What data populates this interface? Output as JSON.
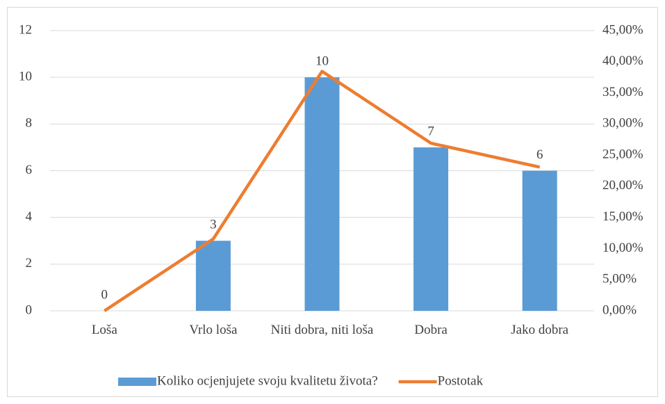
{
  "chart_data": {
    "type": "bar_line",
    "categories": [
      "Loša",
      "Vrlo loša",
      "Niti dobra, niti loša",
      "Dobra",
      "Jako dobra"
    ],
    "series": [
      {
        "name": "Koliko ocjenjujete svoju kvalitetu života?",
        "type": "bar",
        "color": "#5b9bd5",
        "values": [
          0,
          3,
          10,
          7,
          6
        ]
      },
      {
        "name": "Postotak",
        "type": "line",
        "color": "#ed7d31",
        "axis": "y2",
        "values": [
          0,
          11.54,
          38.46,
          26.92,
          23.08
        ]
      }
    ],
    "ylim": [
      0,
      12
    ],
    "yticks": [
      0,
      2,
      4,
      6,
      8,
      10,
      12
    ],
    "y2lim": [
      0,
      45
    ],
    "y2ticks": [
      {
        "value": 0,
        "label": "0,00%"
      },
      {
        "value": 5,
        "label": "5,00%"
      },
      {
        "value": 10,
        "label": "10,00%"
      },
      {
        "value": 15,
        "label": "15,00%"
      },
      {
        "value": 20,
        "label": "20,00%"
      },
      {
        "value": 25,
        "label": "25,00%"
      },
      {
        "value": 30,
        "label": "30,00%"
      },
      {
        "value": 35,
        "label": "35,00%"
      },
      {
        "value": 40,
        "label": "40,00%"
      },
      {
        "value": 45,
        "label": "45,00%"
      }
    ],
    "grid": true,
    "legend": "bottom"
  }
}
